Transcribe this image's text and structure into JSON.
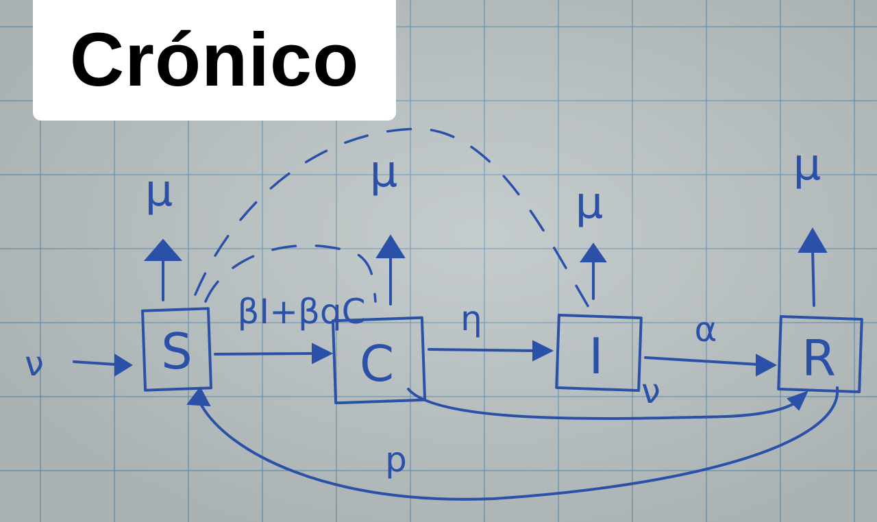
{
  "title": "Crónico",
  "nodes": [
    {
      "id": "S",
      "label": "S"
    },
    {
      "id": "C",
      "label": "C"
    },
    {
      "id": "I",
      "label": "I"
    },
    {
      "id": "R",
      "label": "R"
    }
  ],
  "labels": {
    "inflow": "ν",
    "infection": "βI+βqC",
    "progression": "η",
    "recovery": "α",
    "return": "p",
    "i_outflow": "ν",
    "mortality": "μ"
  },
  "colors": {
    "ink": "#2a50a8",
    "grid": "#5a8caf",
    "paper": "#b9c1c2"
  }
}
